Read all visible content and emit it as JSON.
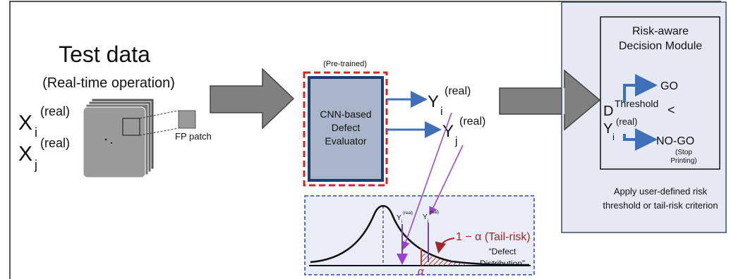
{
  "left": {
    "title": "Test data",
    "subtitle": "(Real-time operation)",
    "inputs": [
      {
        "base": "X",
        "sub": "i",
        "sup": "(real)"
      },
      {
        "base": "X",
        "sub": "j",
        "sup": "(real)"
      }
    ],
    "patch_label": "FP patch"
  },
  "model": {
    "tag": "(Pre-trained)",
    "lines": [
      "CNN-based",
      "Defect",
      "Evaluator"
    ],
    "outputs": [
      {
        "base": "Y",
        "sub": "i",
        "sup": "(real)"
      },
      {
        "base": "Y",
        "sub": "j",
        "sup": "(real)"
      }
    ]
  },
  "distribution": {
    "markers": [
      {
        "base": "Y",
        "sub": "i",
        "sup": "(real)"
      },
      {
        "base": "Y",
        "sub": "j",
        "sup": "(real)"
      }
    ],
    "tail_label": "1 − α (Tail-risk)",
    "alpha": "α",
    "caption": [
      "“Defect",
      "Distribution”"
    ]
  },
  "decision": {
    "title": [
      "Risk-aware",
      "Decision Module"
    ],
    "go": "GO",
    "condition": {
      "d": "D",
      "d_sup": "Threshold",
      "op": "<",
      "y": "Y",
      "y_sub": "i",
      "y_sup": "(real)"
    },
    "nogo": "NO-GO",
    "nogo_note": [
      "(Stop",
      "Printing)"
    ],
    "footer": [
      "Apply user-defined risk",
      "threshold or tail-risk criterion"
    ]
  }
}
